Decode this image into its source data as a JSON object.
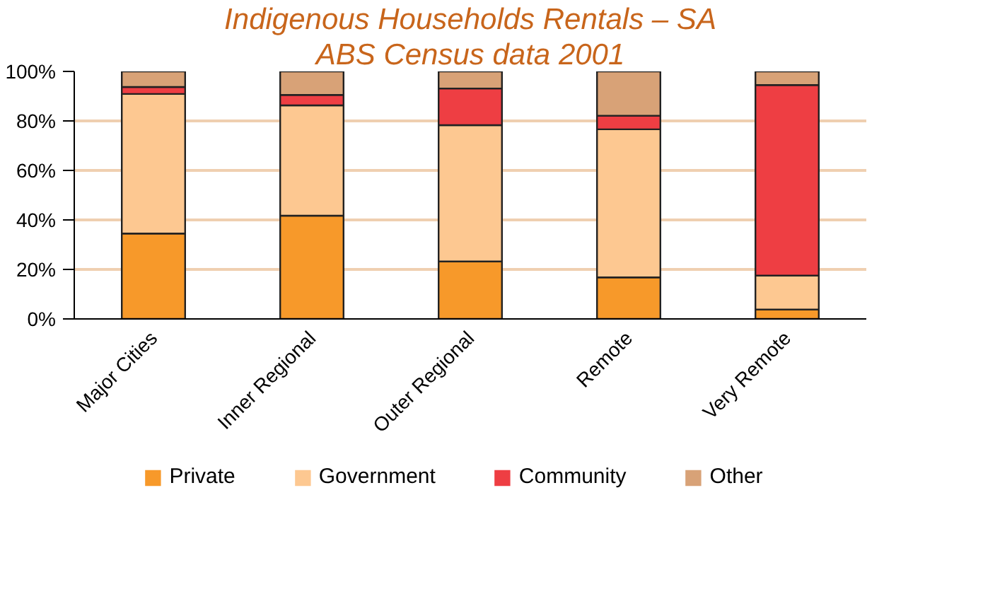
{
  "chart_data": {
    "type": "bar",
    "title": "Indigenous Households Rentals – SA",
    "subtitle": "ABS Census data 2001",
    "categories": [
      "Major Cities",
      "Inner Regional",
      "Outer Regional",
      "Remote",
      "Very Remote"
    ],
    "stacked": true,
    "series": [
      {
        "name": "Private",
        "color": "#f7992a",
        "values": [
          34.5,
          41.7,
          23.2,
          16.8,
          3.8
        ]
      },
      {
        "name": "Government",
        "color": "#fdc891",
        "values": [
          56.4,
          44.6,
          55.1,
          59.8,
          13.7
        ]
      },
      {
        "name": "Community",
        "color": "#ee3e43",
        "values": [
          2.8,
          4.2,
          14.8,
          5.5,
          77.0
        ]
      },
      {
        "name": "Other",
        "color": "#d8a277",
        "values": [
          6.3,
          9.5,
          6.9,
          17.9,
          5.5
        ]
      }
    ],
    "ylim": [
      0,
      100
    ],
    "yticks": [
      {
        "value": 0,
        "label": "0%"
      },
      {
        "value": 20,
        "label": "20%"
      },
      {
        "value": 40,
        "label": "40%"
      },
      {
        "value": 60,
        "label": "60%"
      },
      {
        "value": 80,
        "label": "80%"
      },
      {
        "value": 100,
        "label": "100%"
      }
    ],
    "grid": "y",
    "legend": "bottom"
  }
}
